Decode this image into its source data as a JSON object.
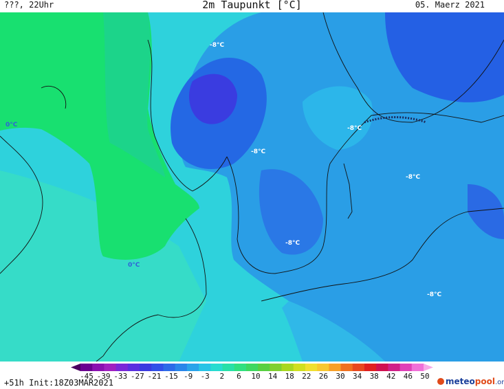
{
  "header": {
    "left": "???, 22Uhr",
    "title": "2m Taupunkt [°C]",
    "date": "05. Maerz 2021"
  },
  "labels": [
    {
      "text": "-8°C",
      "color": "#ffffff"
    },
    {
      "text": "0°C",
      "color": "#3060d8"
    },
    {
      "text": "-8°C",
      "color": "#ffffff"
    },
    {
      "text": "-8°C",
      "color": "#ffffff"
    },
    {
      "text": "-8°C",
      "color": "#ffffff"
    },
    {
      "text": "-8°C",
      "color": "#ffffff"
    },
    {
      "text": "0°C",
      "color": "#3060d8"
    },
    {
      "text": "-8°C",
      "color": "#ffffff"
    }
  ],
  "legend": {
    "ticks": [
      "-45",
      "-39",
      "-33",
      "-27",
      "-21",
      "-15",
      "-9",
      "-3",
      "2",
      "6",
      "10",
      "14",
      "18",
      "22",
      "26",
      "30",
      "34",
      "38",
      "42",
      "46",
      "50"
    ],
    "colors": [
      "#4a0060",
      "#6a0090",
      "#8a10b0",
      "#a020c0",
      "#7a28d8",
      "#5a30e0",
      "#3a3ae0",
      "#3050e8",
      "#2c6ae8",
      "#2a86ea",
      "#2aa4ea",
      "#28c4e6",
      "#28dcd0",
      "#28e0a8",
      "#30e080",
      "#3ed860",
      "#58d040",
      "#80d030",
      "#a8d820",
      "#d0e020",
      "#f0e030",
      "#f8c830",
      "#f8a028",
      "#f07020",
      "#e84820",
      "#e02020",
      "#d01050",
      "#d02088",
      "#e040b8",
      "#f070d8",
      "#f8a8e8"
    ],
    "init": "+51h Init:18Z03MAR2021"
  },
  "logo": {
    "part1": "meteo",
    "part2": "pool",
    "part3": ".org"
  }
}
